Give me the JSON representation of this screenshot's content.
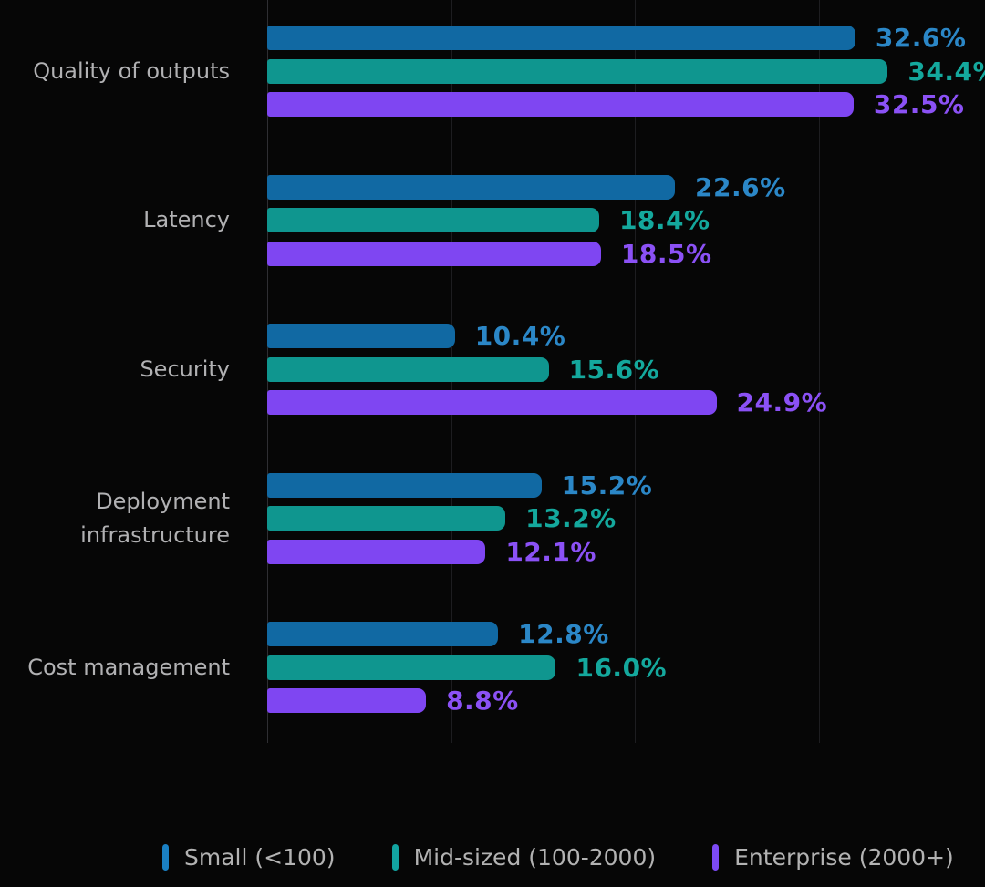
{
  "chart_data": {
    "type": "bar",
    "orientation": "horizontal",
    "title": "",
    "xlabel": "",
    "ylabel": "",
    "grid": true,
    "legend_position": "bottom",
    "value_suffix": "%",
    "value_decimals": 1,
    "background_color": "#060606",
    "categories": [
      "Quality of outputs",
      "Latency",
      "Security",
      "Deployment infrastructure",
      "Cost management"
    ],
    "series": [
      {
        "name": "Small (<100)",
        "bar_color": "#1169a3",
        "label_color": "#2b87c7",
        "marker_color": "#1a80c4",
        "values": [
          32.6,
          22.6,
          10.4,
          15.2,
          12.8
        ]
      },
      {
        "name": "Mid-sized (100-2000)",
        "bar_color": "#0f968f",
        "label_color": "#14a89d",
        "marker_color": "#12a3a0",
        "values": [
          34.4,
          18.4,
          15.6,
          13.2,
          16.0
        ]
      },
      {
        "name": "Enterprise (2000+)",
        "bar_color": "#7f46f2",
        "label_color": "#8b51f5",
        "marker_color": "#7c4af5",
        "values": [
          32.5,
          18.5,
          24.9,
          12.1,
          8.8
        ]
      }
    ]
  }
}
